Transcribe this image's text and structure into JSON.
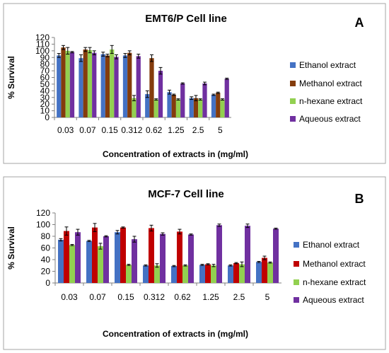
{
  "chart_data": [
    {
      "type": "bar",
      "panel_label": "A",
      "title": "EMT6/P Cell line",
      "xlabel": "Concentration of extracts in (mg/ml)",
      "ylabel": "% Survival",
      "ylim": [
        0,
        120
      ],
      "yticks": [
        0,
        10,
        20,
        30,
        40,
        50,
        60,
        70,
        80,
        90,
        100,
        110,
        120
      ],
      "grid": false,
      "legend_position": "right",
      "categories": [
        "0.03",
        "0.07",
        "0.15",
        "0.312",
        "0.62",
        "1.25",
        "2.5",
        "5"
      ],
      "series": [
        {
          "name": "Ethanol extract",
          "color": "#4472C4",
          "values": [
            93,
            89,
            95,
            93,
            35,
            38,
            29,
            34
          ],
          "errors": [
            3,
            5,
            3,
            3,
            5,
            3,
            2,
            1
          ]
        },
        {
          "name": "Methanol extract",
          "color": "#843C0C",
          "values": [
            105,
            102,
            93,
            97,
            89,
            34,
            29,
            37
          ],
          "errors": [
            3,
            3,
            2,
            3,
            5,
            1,
            4,
            1
          ]
        },
        {
          "name": "n-hexane extract",
          "color": "#92D050",
          "values": [
            100,
            101,
            102,
            29,
            27,
            27,
            27,
            27
          ],
          "errors": [
            5,
            4,
            6,
            4,
            1,
            1,
            1,
            1
          ]
        },
        {
          "name": "Aqueous extract",
          "color": "#7030A0",
          "values": [
            98,
            97,
            91,
            92,
            70,
            51,
            51,
            58
          ],
          "errors": [
            1,
            3,
            3,
            3,
            5,
            1,
            2,
            1
          ]
        }
      ]
    },
    {
      "type": "bar",
      "panel_label": "B",
      "title": "MCF-7 Cell line",
      "xlabel": "Concentration of extracts in (mg/ml)",
      "ylabel": "% Survival",
      "ylim": [
        0,
        120
      ],
      "yticks": [
        0,
        20,
        40,
        60,
        80,
        100,
        120
      ],
      "grid": false,
      "legend_position": "right",
      "categories": [
        "0.03",
        "0.07",
        "0.15",
        "0.312",
        "0.62",
        "1.25",
        "2.5",
        "5"
      ],
      "series": [
        {
          "name": "Ethanol extract",
          "color": "#4472C4",
          "values": [
            74,
            72,
            87,
            30,
            29,
            31,
            30,
            36
          ],
          "errors": [
            2,
            1,
            3,
            1,
            1,
            1,
            1,
            1
          ]
        },
        {
          "name": "Methanol extract",
          "color": "#C00000",
          "values": [
            89,
            95,
            95,
            94,
            88,
            32,
            34,
            43
          ],
          "errors": [
            7,
            7,
            1,
            5,
            4,
            1,
            1,
            3
          ]
        },
        {
          "name": "n-hexane extract",
          "color": "#92D050",
          "values": [
            65,
            63,
            31,
            30,
            30,
            30,
            32,
            35
          ],
          "errors": [
            1,
            5,
            1,
            3,
            1,
            2,
            4,
            1
          ]
        },
        {
          "name": "Aqueous extract",
          "color": "#7030A0",
          "values": [
            87,
            80,
            75,
            84,
            83,
            99,
            98,
            93
          ],
          "errors": [
            5,
            1,
            5,
            2,
            1,
            2,
            3,
            1
          ]
        }
      ]
    }
  ]
}
